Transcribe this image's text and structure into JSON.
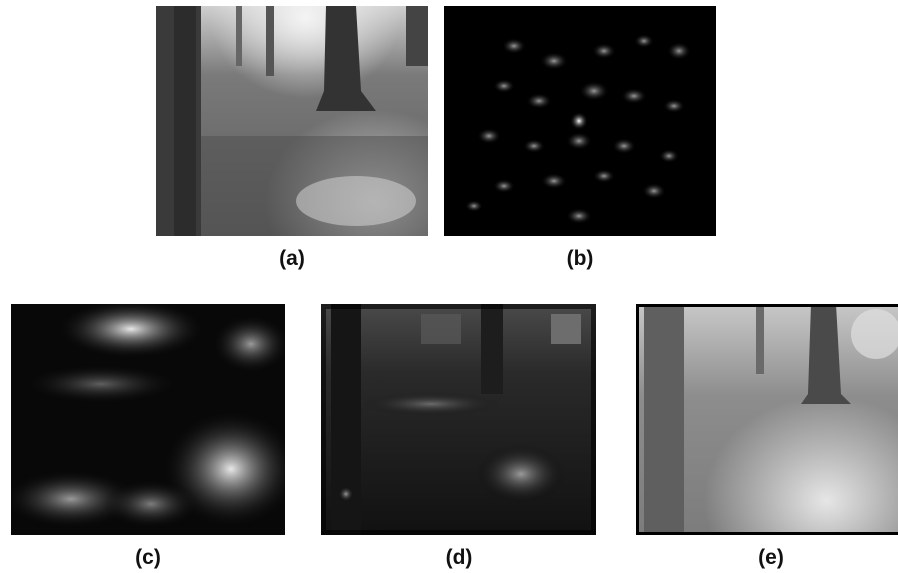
{
  "figure": {
    "panels": [
      {
        "id": "a",
        "caption": "(a)",
        "content": "grayscale forest photo"
      },
      {
        "id": "b",
        "caption": "(b)",
        "content": "sparse bright blobs on black"
      },
      {
        "id": "c",
        "caption": "(c)",
        "content": "heavily blurred low-frequency reconstruction"
      },
      {
        "id": "d",
        "caption": "(d)",
        "content": "dark noisy reconstruction of forest"
      },
      {
        "id": "e",
        "caption": "(e)",
        "content": "bright reconstruction of forest"
      }
    ]
  }
}
